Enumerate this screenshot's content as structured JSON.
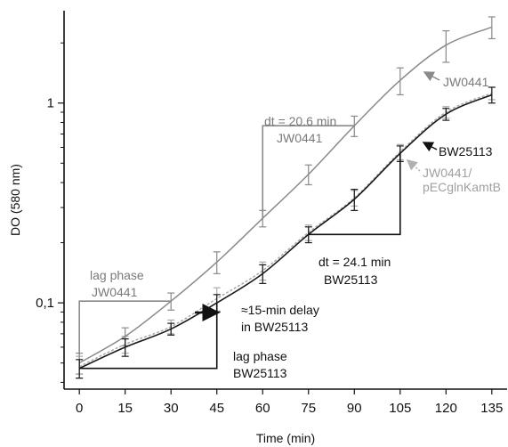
{
  "chart_data": {
    "type": "line",
    "xlabel": "Time (min)",
    "ylabel": "DO (580 nm)",
    "x_ticks": [
      "0",
      "15",
      "30",
      "45",
      "60",
      "75",
      "90",
      "105",
      "120",
      "135"
    ],
    "y_ticks": [
      {
        "value": 0.1,
        "label": "0,1"
      },
      {
        "value": 1,
        "label": "1"
      }
    ],
    "xlim": [
      -5,
      140
    ],
    "ylim": [
      0.037,
      2.9
    ],
    "y_scale": "log",
    "grid": false,
    "series": [
      {
        "name": "JW0441",
        "color": "#8a8a8a",
        "dash": false,
        "x": [
          0,
          15,
          30,
          45,
          60,
          75,
          90,
          105,
          120,
          135
        ],
        "y": [
          0.05,
          0.068,
          0.102,
          0.16,
          0.265,
          0.44,
          0.77,
          1.3,
          1.95,
          2.4
        ],
        "err": [
          0.006,
          0.007,
          0.01,
          0.02,
          0.025,
          0.05,
          0.09,
          0.2,
          0.35,
          0.3
        ]
      },
      {
        "name": "BW25113",
        "color": "#1a1a1a",
        "dash": false,
        "x": [
          0,
          15,
          30,
          45,
          60,
          75,
          90,
          105,
          120,
          135
        ],
        "y": [
          0.047,
          0.06,
          0.074,
          0.1,
          0.14,
          0.22,
          0.33,
          0.56,
          0.88,
          1.1
        ],
        "err": [
          0.005,
          0.006,
          0.005,
          0.01,
          0.015,
          0.02,
          0.04,
          0.05,
          0.06,
          0.1
        ]
      },
      {
        "name": "JW0441/\npECglnKamtB",
        "color": "#aaaaaa",
        "dash": true,
        "x": [
          0,
          15,
          30,
          45,
          60,
          75,
          90,
          105,
          120,
          135
        ],
        "y": [
          0.048,
          0.062,
          0.076,
          0.105,
          0.145,
          0.225,
          0.335,
          0.57,
          0.9,
          1.12
        ],
        "err": [
          0.006,
          0.006,
          0.006,
          0.014,
          0.015,
          0.02,
          0.03,
          0.05,
          0.06,
          0.08
        ]
      }
    ],
    "annotations": {
      "jw_label": "JW0441",
      "bw_label": "BW25113",
      "jwp_label_1": "JW0441/",
      "jwp_label_2": "pECglnKamtB",
      "dt_jw_1": "dt = 20.6 min",
      "dt_jw_2": "JW0441",
      "dt_bw_1": "dt = 24.1 min",
      "dt_bw_2": "BW25113",
      "lag_jw_1": "lag phase",
      "lag_jw_2": "JW0441",
      "lag_bw_1": "lag phase",
      "lag_bw_2": "BW25113",
      "delay_1": "≈15-min delay",
      "delay_2": "in BW25113"
    }
  }
}
